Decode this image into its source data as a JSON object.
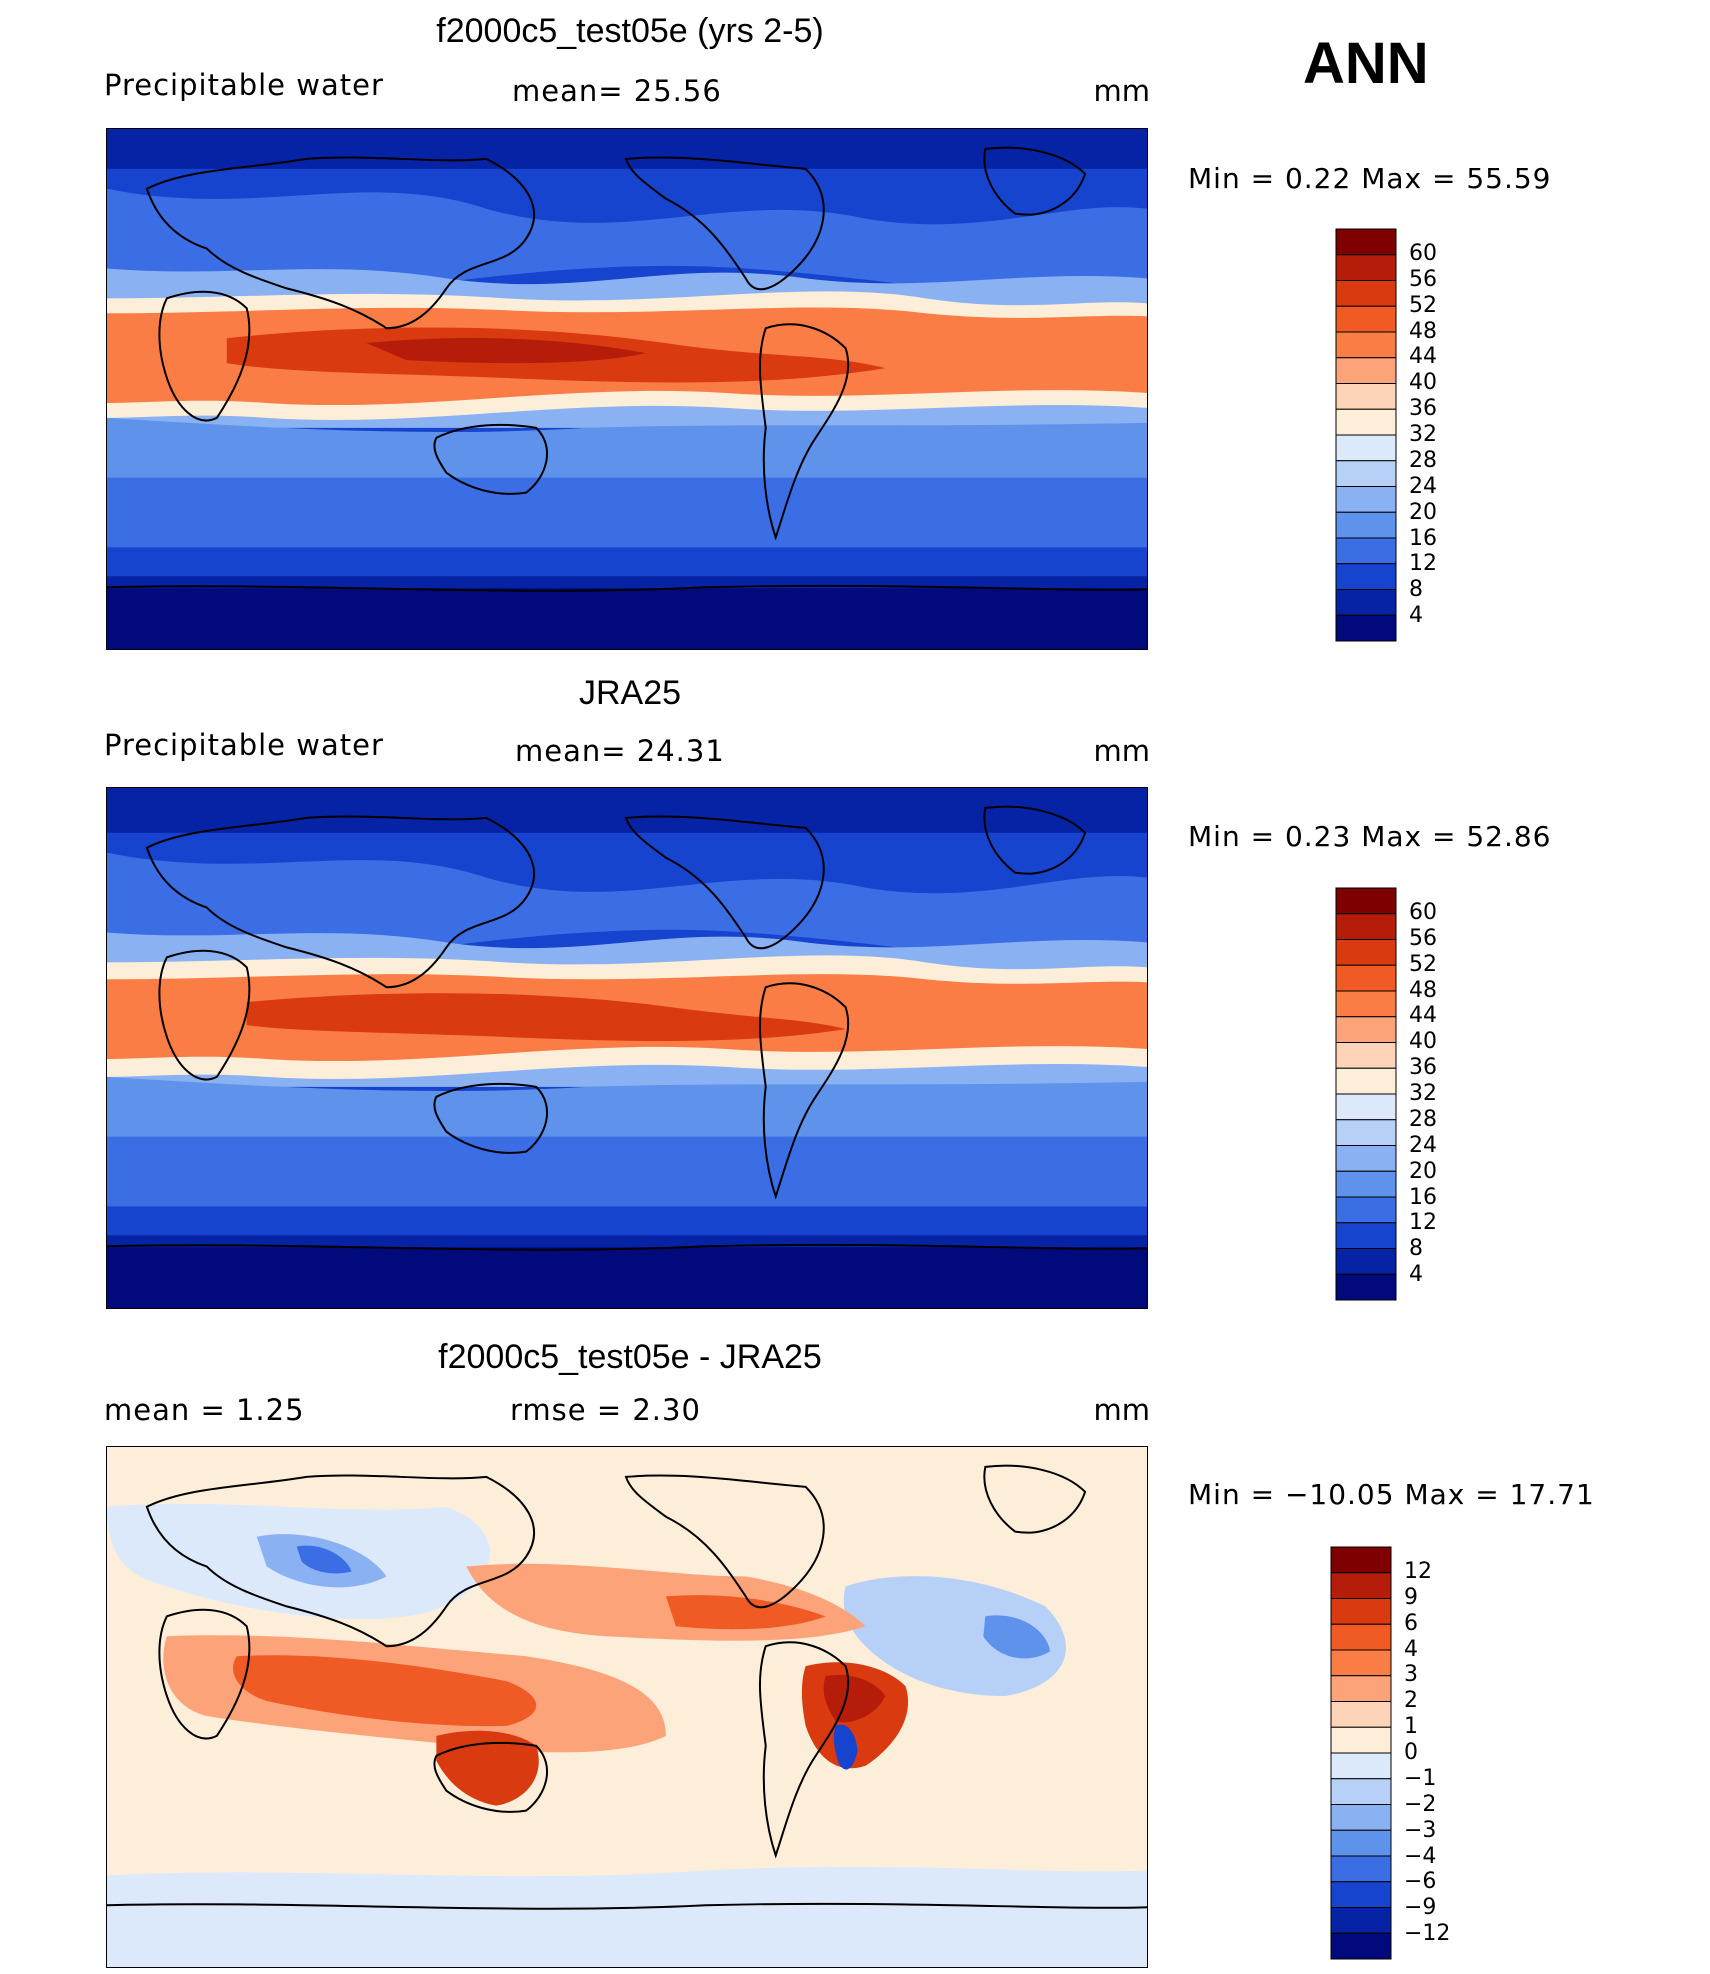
{
  "header": {
    "season": "ANN"
  },
  "panels": [
    {
      "id": "model",
      "title": "f2000c5_test05e (yrs 2-5)",
      "left_label": "Precipitable  water",
      "mid_label": "mean=   25.56",
      "units": "mm",
      "minmax": "Min  =     0.22  Max  =    55.59",
      "colorbar": {
        "labels": [
          "60",
          "56",
          "52",
          "48",
          "44",
          "40",
          "36",
          "32",
          "28",
          "24",
          "20",
          "16",
          "12",
          "8",
          "4"
        ],
        "colors": [
          "#7f0000",
          "#b51d0a",
          "#d93a10",
          "#f05a24",
          "#fa7d45",
          "#fca37a",
          "#fdd3b8",
          "#fdeeda",
          "#dbe9fb",
          "#b7d0f8",
          "#8ab1f2",
          "#5e92eb",
          "#3b6ee4",
          "#1744cf",
          "#0623a6",
          "#000a7a"
        ]
      },
      "chart_data": {
        "type": "heatmap",
        "title": "f2000c5_test05e (yrs 2-5)",
        "variable": "Precipitable water",
        "units": "mm",
        "mean": 25.56,
        "min": 0.22,
        "max": 55.59,
        "levels": [
          4,
          8,
          12,
          16,
          20,
          24,
          28,
          32,
          36,
          40,
          44,
          48,
          52,
          56,
          60
        ]
      }
    },
    {
      "id": "obs",
      "title": "JRA25",
      "left_label": "Precipitable  water",
      "mid_label": "mean=   24.31",
      "units": "mm",
      "minmax": "Min  =     0.23  Max  =    52.86",
      "colorbar": {
        "labels": [
          "60",
          "56",
          "52",
          "48",
          "44",
          "40",
          "36",
          "32",
          "28",
          "24",
          "20",
          "16",
          "12",
          "8",
          "4"
        ],
        "colors": [
          "#7f0000",
          "#b51d0a",
          "#d93a10",
          "#f05a24",
          "#fa7d45",
          "#fca37a",
          "#fdd3b8",
          "#fdeeda",
          "#dbe9fb",
          "#b7d0f8",
          "#8ab1f2",
          "#5e92eb",
          "#3b6ee4",
          "#1744cf",
          "#0623a6",
          "#000a7a"
        ]
      },
      "chart_data": {
        "type": "heatmap",
        "title": "JRA25",
        "variable": "Precipitable water",
        "units": "mm",
        "mean": 24.31,
        "min": 0.23,
        "max": 52.86,
        "levels": [
          4,
          8,
          12,
          16,
          20,
          24,
          28,
          32,
          36,
          40,
          44,
          48,
          52,
          56,
          60
        ]
      }
    },
    {
      "id": "diff",
      "title": "f2000c5_test05e - JRA25",
      "left_label": "mean  =     1.25",
      "mid_label": "rmse  =     2.30",
      "units": "mm",
      "minmax": "Min  = −10.05  Max  =    17.71",
      "colorbar": {
        "labels": [
          "12",
          "9",
          "6",
          "4",
          "3",
          "2",
          "1",
          "0",
          "−1",
          "−2",
          "−3",
          "−4",
          "−6",
          "−9",
          "−12"
        ],
        "colors": [
          "#7f0000",
          "#b51d0a",
          "#d93a10",
          "#f05a24",
          "#fa7d45",
          "#fca37a",
          "#fdd3b8",
          "#fdeeda",
          "#dbe9fb",
          "#b7d0f8",
          "#8ab1f2",
          "#5e92eb",
          "#3b6ee4",
          "#1744cf",
          "#0623a6",
          "#000a7a"
        ]
      },
      "chart_data": {
        "type": "heatmap",
        "title": "f2000c5_test05e - JRA25",
        "units": "mm",
        "mean": 1.25,
        "rmse": 2.3,
        "min": -10.05,
        "max": 17.71,
        "levels": [
          -12,
          -9,
          -6,
          -4,
          -3,
          -2,
          -1,
          0,
          1,
          2,
          3,
          4,
          6,
          9,
          12
        ]
      }
    }
  ]
}
